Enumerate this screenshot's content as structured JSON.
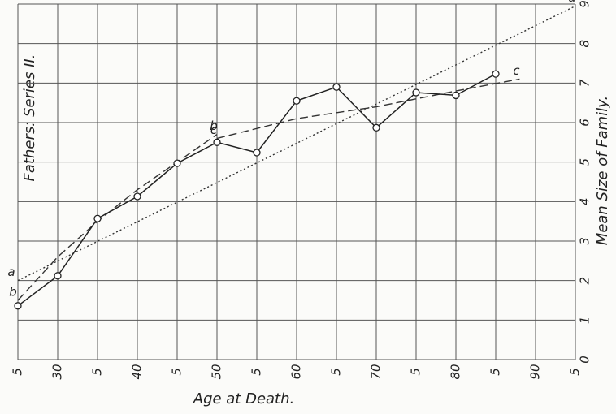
{
  "chart_data": {
    "type": "line",
    "title": "Fathers: Series II.",
    "x_label": "Age at Death.",
    "y_label": "Mean Size of Family.",
    "xlim": [
      25,
      95
    ],
    "ylim": [
      0,
      9
    ],
    "xticks": [
      {
        "value": 25,
        "label": "5"
      },
      30,
      {
        "value": 35,
        "label": "5"
      },
      40,
      {
        "value": 45,
        "label": "5"
      },
      50,
      {
        "value": 55,
        "label": "5"
      },
      60,
      {
        "value": 65,
        "label": "5"
      },
      70,
      {
        "value": 75,
        "label": "5"
      },
      80,
      {
        "value": 85,
        "label": "5"
      },
      90,
      {
        "value": 95,
        "label": "5"
      }
    ],
    "yticks": [
      0,
      1,
      2,
      3,
      4,
      5,
      6,
      7,
      8,
      9
    ],
    "grid": true,
    "x": [
      25,
      30,
      35,
      40,
      45,
      50,
      55,
      60,
      65,
      70,
      75,
      80,
      85
    ],
    "values": [
      1.36,
      2.12,
      3.57,
      4.13,
      4.97,
      5.5,
      5.24,
      6.55,
      6.9,
      5.87,
      6.76,
      6.69,
      7.23
    ],
    "color": "#222222",
    "fits": [
      {
        "name": "a",
        "style": "dotted",
        "x": [
          25,
          95
        ],
        "values": [
          2.0,
          8.95
        ]
      },
      {
        "name": "b",
        "style": "dashed",
        "x": [
          25,
          30,
          35,
          40,
          45,
          50
        ],
        "values": [
          1.5,
          2.6,
          3.5,
          4.3,
          5.0,
          5.7
        ]
      },
      {
        "name": "c",
        "style": "dashed",
        "x": [
          50,
          60,
          70,
          80,
          88
        ],
        "values": [
          5.6,
          6.1,
          6.4,
          6.8,
          7.1
        ]
      }
    ]
  }
}
